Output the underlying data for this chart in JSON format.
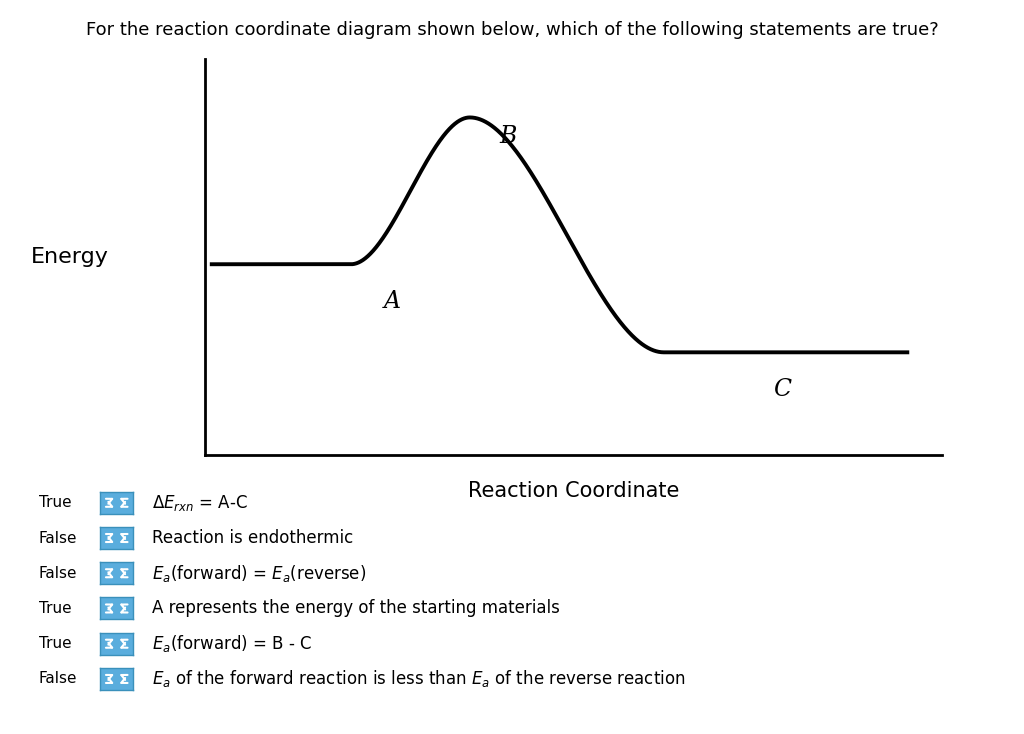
{
  "title_text": "For the reaction coordinate diagram shown below, which of the following statements are true?",
  "ylabel": "Energy",
  "xlabel": "Reaction Coordinate",
  "background_color": "#ffffff",
  "line_color": "#000000",
  "line_width": 2.8,
  "label_A": "A",
  "label_B": "B",
  "label_C": "C",
  "A_level": 0.52,
  "B_level": 0.92,
  "C_level": 0.28,
  "statements": [
    {
      "verdict": "True",
      "idx": 0
    },
    {
      "verdict": "False",
      "idx": 1
    },
    {
      "verdict": "False",
      "idx": 2
    },
    {
      "verdict": "True",
      "idx": 3
    },
    {
      "verdict": "True",
      "idx": 4
    },
    {
      "verdict": "False",
      "idx": 5
    }
  ],
  "box_color": "#5aaddd",
  "box_border": "#3a90bb"
}
